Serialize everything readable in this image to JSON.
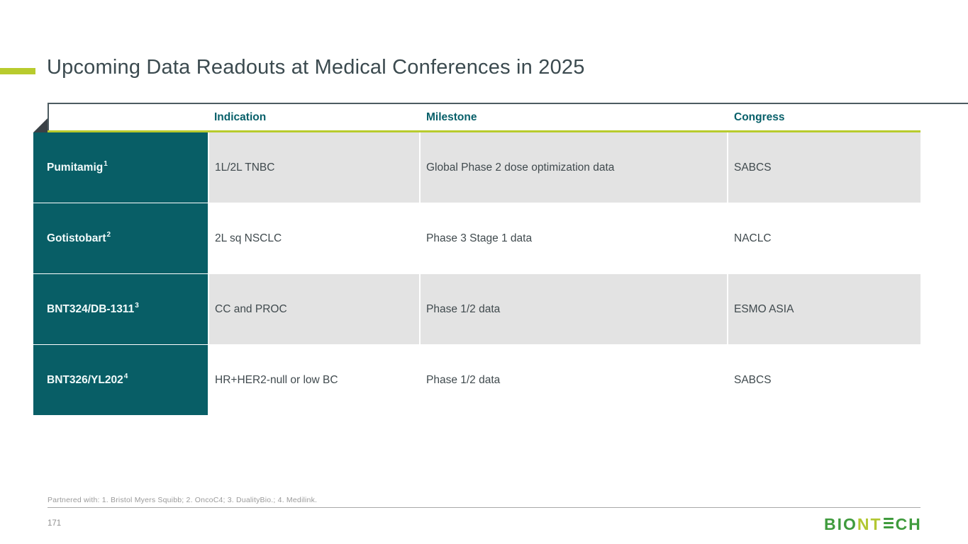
{
  "slide": {
    "title": "Upcoming Data Readouts at Medical Conferences in 2025",
    "footnote": "Partnered with: 1. Bristol Myers Squibb; 2. OncoC4; 3. DualityBio.; 4. Medilink.",
    "page_number": "171"
  },
  "table": {
    "columns": [
      "",
      "Indication",
      "Milestone",
      "Congress"
    ],
    "rows": [
      {
        "program": "Pumitamig",
        "superscript": "1",
        "indication": "1L/2L TNBC",
        "milestone": "Global Phase 2 dose optimization data",
        "congress": "SABCS"
      },
      {
        "program": "Gotistobart",
        "superscript": "2",
        "indication": "2L sq NSCLC",
        "milestone": "Phase 3 Stage 1 data",
        "congress": "NACLC"
      },
      {
        "program": "BNT324/DB-1311",
        "superscript": "3",
        "indication": "CC and PROC",
        "milestone": "Phase 1/2 data",
        "congress": "ESMO ASIA"
      },
      {
        "program": "BNT326/YL202",
        "superscript": "4",
        "indication": "HR+HER2-null or low BC",
        "milestone": "Phase 1/2 data",
        "congress": "SABCS"
      }
    ]
  },
  "logo": {
    "brand": "BIONTECH",
    "segment_green_1": "BIO",
    "segment_lime": "NT",
    "segment_green_2": "CH"
  },
  "colors": {
    "accent_lime": "#b8cb2d",
    "teal_dark": "#085e66",
    "cell_gray": "#e3e3e3",
    "header_text": "#08606a",
    "body_text": "#404a4e",
    "title_text": "#3b4a4f",
    "line_dark": "#4d5c61",
    "fold_dark": "#3a4146",
    "muted_gray": "#9a9a9a",
    "logo_green": "#3f9b3d",
    "logo_lime": "#b2c732"
  }
}
